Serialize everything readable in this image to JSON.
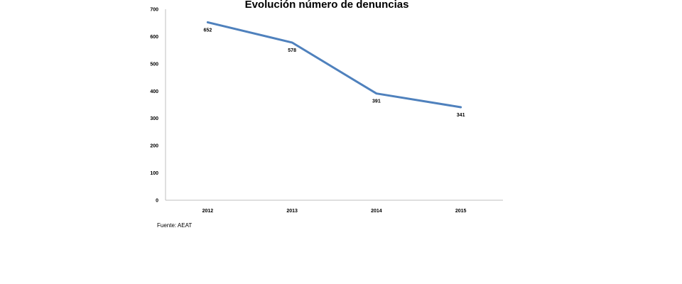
{
  "chart_data": {
    "type": "line",
    "title": "Evolución número de denuncias",
    "xlabel": "",
    "ylabel": "",
    "categories": [
      "2012",
      "2013",
      "2014",
      "2015"
    ],
    "series": [
      {
        "values": [
          652,
          578,
          391,
          341
        ],
        "color": "#4f81bd",
        "data_labels": [
          "652",
          "578",
          "391",
          "341"
        ]
      }
    ],
    "ylim": [
      0,
      700
    ],
    "yticks": [
      0,
      100,
      200,
      300,
      400,
      500,
      600,
      700
    ],
    "ytick_labels": [
      "0",
      "100",
      "200",
      "300",
      "400",
      "500",
      "600",
      "700"
    ],
    "grid": false,
    "legend": "none"
  },
  "source_note": "Fuente: AEAT"
}
